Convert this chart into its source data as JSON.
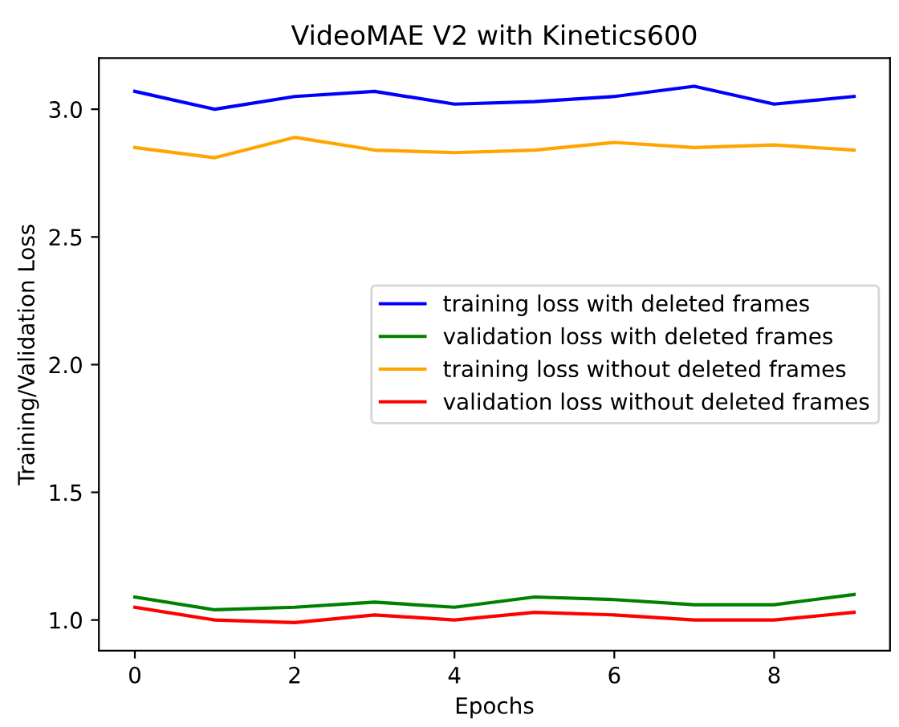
{
  "chart_data": {
    "type": "line",
    "title": "VideoMAE V2 with Kinetics600",
    "xlabel": "Epochs",
    "ylabel": "Training/Validation Loss",
    "x": [
      0,
      1,
      2,
      3,
      4,
      5,
      6,
      7,
      8,
      9
    ],
    "series": [
      {
        "name": "training loss with deleted frames",
        "color": "#0000ff",
        "values": [
          3.07,
          3.0,
          3.05,
          3.07,
          3.02,
          3.03,
          3.05,
          3.09,
          3.02,
          3.05
        ]
      },
      {
        "name": "validation loss with deleted frames",
        "color": "#008000",
        "values": [
          1.09,
          1.04,
          1.05,
          1.07,
          1.05,
          1.09,
          1.08,
          1.06,
          1.06,
          1.1
        ]
      },
      {
        "name": "training loss without deleted frames",
        "color": "#ffa500",
        "values": [
          2.85,
          2.81,
          2.89,
          2.84,
          2.83,
          2.84,
          2.87,
          2.85,
          2.86,
          2.84
        ]
      },
      {
        "name": "validation loss without deleted frames",
        "color": "#ff0000",
        "values": [
          1.05,
          1.0,
          0.99,
          1.02,
          1.0,
          1.03,
          1.02,
          1.0,
          1.0,
          1.03
        ]
      }
    ],
    "xlim": [
      -0.45,
      9.45
    ],
    "ylim": [
      0.88,
      3.2
    ],
    "xticks": [
      0,
      2,
      4,
      6,
      8
    ],
    "yticks": [
      {
        "value": 1,
        "label": "1.0"
      },
      1.5,
      {
        "value": 2,
        "label": "2.0"
      },
      2.5,
      {
        "value": 3,
        "label": "3.0"
      }
    ],
    "legend": "center right",
    "grid": false,
    "marker": "none",
    "line_style": "solid"
  }
}
